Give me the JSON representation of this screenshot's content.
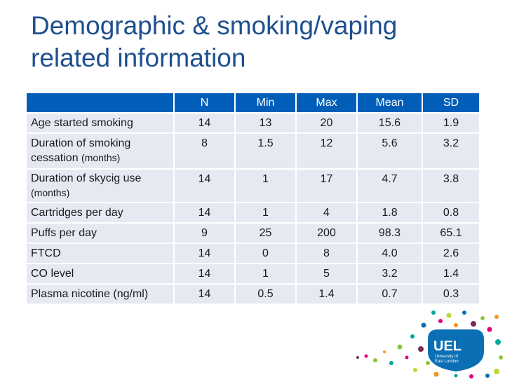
{
  "title_line1": "Demographic & smoking/vaping",
  "title_line2": "related information",
  "table": {
    "columns": [
      "",
      "N",
      "Min",
      "Max",
      "Mean",
      "SD"
    ],
    "rows": [
      {
        "label": "Age started smoking",
        "sub": "",
        "n": "14",
        "min": "13",
        "max": "20",
        "mean": "15.6",
        "sd": "1.9"
      },
      {
        "label": "Duration of smoking cessation",
        "sub": "(months)",
        "n": "8",
        "min": "1.5",
        "max": "12",
        "mean": "5.6",
        "sd": "3.2"
      },
      {
        "label": "Duration of skycig use",
        "sub": "(months)",
        "n": "14",
        "min": "1",
        "max": "17",
        "mean": "4.7",
        "sd": "3.8"
      },
      {
        "label": "Cartridges per day",
        "sub": "",
        "n": "14",
        "min": "1",
        "max": "4",
        "mean": "1.8",
        "sd": "0.8"
      },
      {
        "label": "Puffs per day",
        "sub": "",
        "n": "9",
        "min": "25",
        "max": "200",
        "mean": "98.3",
        "sd": "65.1"
      },
      {
        "label": "FTCD",
        "sub": "",
        "n": "14",
        "min": "0",
        "max": "8",
        "mean": "4.0",
        "sd": "2.6"
      },
      {
        "label": "CO level",
        "sub": "",
        "n": "14",
        "min": "1",
        "max": "5",
        "mean": "3.2",
        "sd": "1.4"
      },
      {
        "label": "Plasma nicotine (ng/ml)",
        "sub": "",
        "n": "14",
        "min": "0.5",
        "max": "1.4",
        "mean": "0.7",
        "sd": "0.3"
      }
    ]
  },
  "logo": {
    "text": "UEL",
    "subtext_line1": "University of",
    "subtext_line2": "East London",
    "color": "#0a6fb5"
  }
}
